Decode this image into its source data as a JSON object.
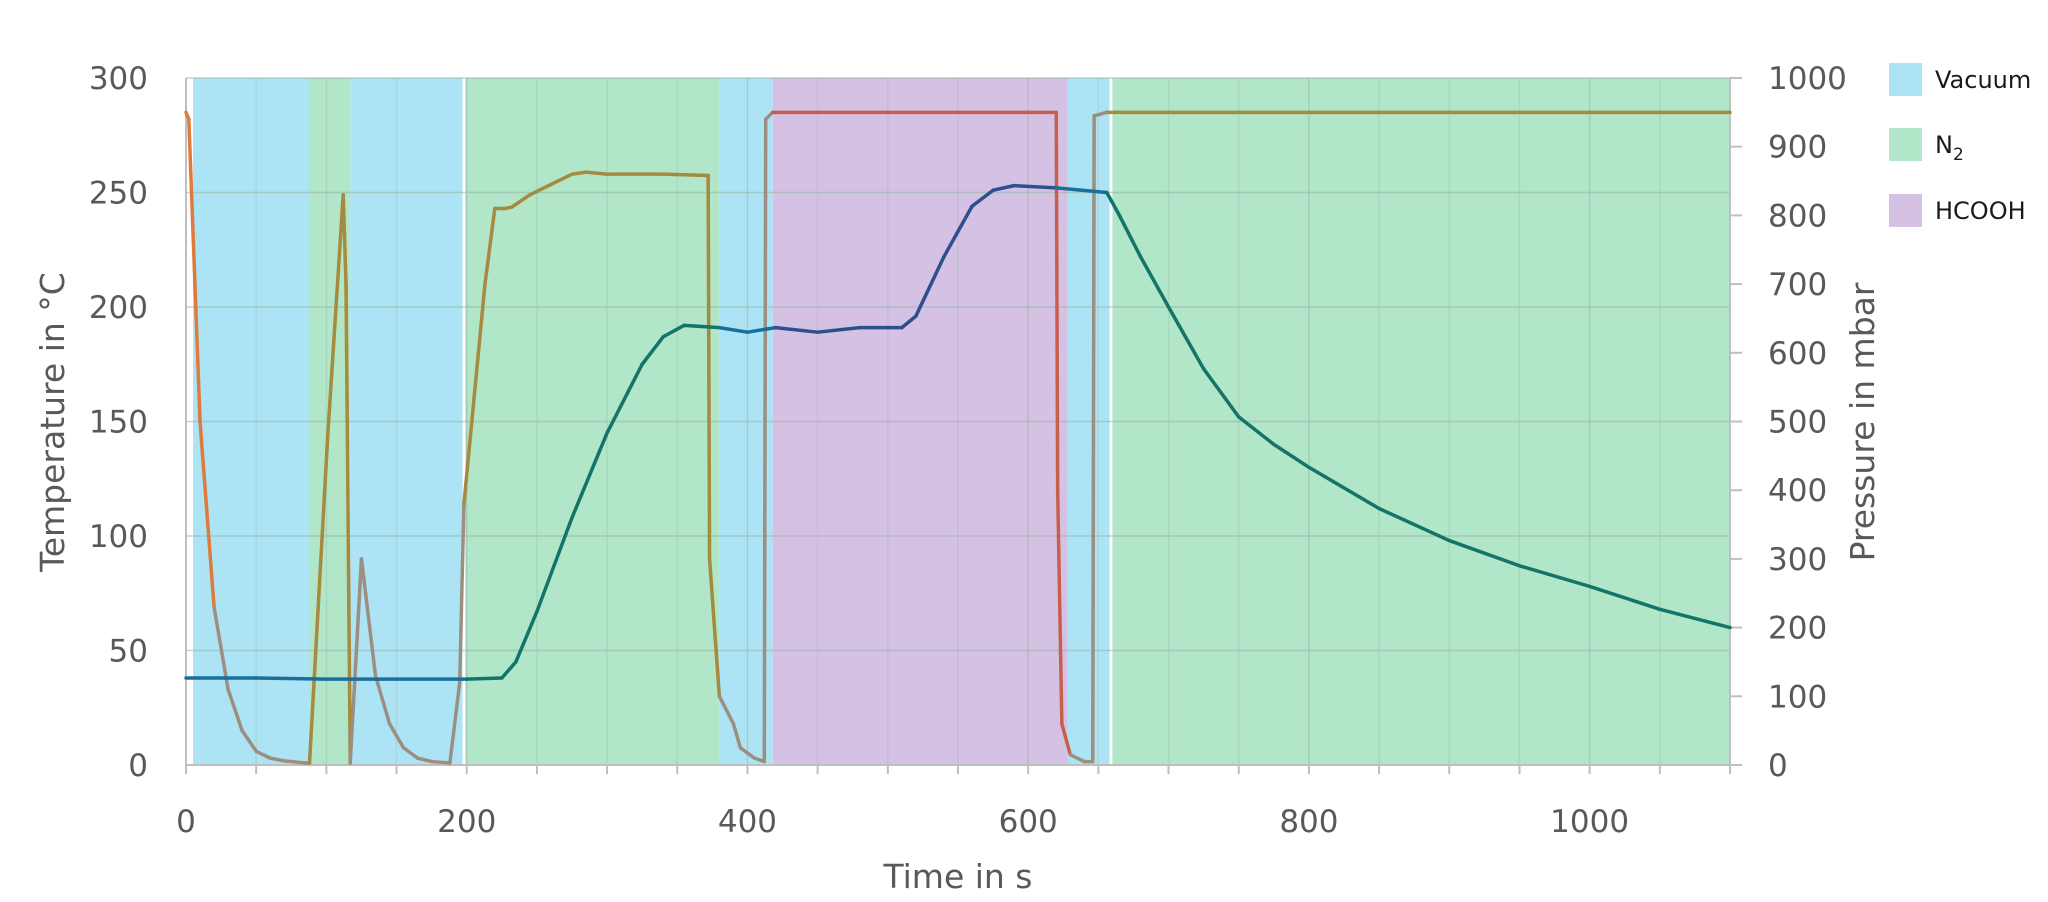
{
  "chart_data": {
    "type": "line",
    "title": "",
    "xlabel": "Time in s",
    "ylabel": "Temperature in °C",
    "y2label": "Pressure in mbar",
    "xlim": [
      0,
      1100
    ],
    "ylim": [
      0,
      300
    ],
    "y2lim": [
      0,
      1000
    ],
    "x_ticks": [
      0,
      200,
      400,
      600,
      800,
      1000
    ],
    "x_minor_step": 50,
    "y_ticks": [
      0,
      50,
      100,
      150,
      200,
      250,
      300
    ],
    "y2_ticks": [
      0,
      100,
      200,
      300,
      400,
      500,
      600,
      700,
      800,
      900,
      1000
    ],
    "grid": true,
    "legend_position": "right",
    "legend": [
      {
        "label": "Vacuum",
        "color": "#ade4f5"
      },
      {
        "label": "N2",
        "label_main": "N",
        "label_sub": "2",
        "color": "#b1e6c8"
      },
      {
        "label": "HCOOH",
        "color": "#d5c1e3"
      }
    ],
    "phases": [
      {
        "gas": "Vacuum",
        "start": 5,
        "end": 88
      },
      {
        "gas": "N2",
        "start": 88,
        "end": 117
      },
      {
        "gas": "Vacuum",
        "start": 117,
        "end": 197
      },
      {
        "gas": "N2",
        "start": 199,
        "end": 380
      },
      {
        "gas": "Vacuum",
        "start": 380,
        "end": 418
      },
      {
        "gas": "HCOOH",
        "start": 418,
        "end": 628
      },
      {
        "gas": "Vacuum",
        "start": 628,
        "end": 658
      },
      {
        "gas": "N2",
        "start": 660,
        "end": 1100
      }
    ],
    "series": [
      {
        "name": "Temperature",
        "axis": "left",
        "unit": "°C",
        "x": [
          0,
          50,
          100,
          150,
          200,
          225,
          235,
          250,
          275,
          300,
          325,
          340,
          355,
          380,
          400,
          420,
          450,
          480,
          510,
          520,
          540,
          560,
          575,
          590,
          620,
          656,
          665,
          680,
          700,
          725,
          750,
          775,
          800,
          850,
          900,
          950,
          1000,
          1050,
          1100
        ],
        "values": [
          38,
          38,
          37.5,
          37.5,
          37.5,
          38,
          45,
          67,
          108,
          145,
          175,
          187,
          192,
          191,
          189,
          191,
          189,
          191,
          191,
          196,
          222,
          244,
          251,
          253,
          252,
          250,
          240,
          222,
          200,
          173,
          152,
          140,
          130,
          112,
          98,
          87,
          78,
          68,
          60
        ]
      },
      {
        "name": "Pressure",
        "axis": "right",
        "unit": "mbar",
        "x": [
          0,
          2,
          10,
          20,
          30,
          40,
          50,
          60,
          70,
          85,
          88,
          101,
          112,
          114,
          117,
          125,
          135,
          145,
          155,
          165,
          175,
          188,
          195,
          198,
          213,
          220,
          227,
          232,
          245,
          260,
          275,
          285,
          300,
          340,
          372,
          373,
          380,
          390,
          395,
          405,
          412,
          413,
          418,
          500,
          620,
          621,
          624,
          630,
          640,
          646,
          647,
          656,
          700,
          800,
          900,
          1000,
          1100
        ],
        "values": [
          950,
          940,
          500,
          230,
          110,
          50,
          20,
          10,
          6,
          3,
          3,
          480,
          830,
          700,
          3,
          300,
          130,
          60,
          25,
          10,
          5,
          3,
          120,
          380,
          700,
          810,
          810,
          812,
          830,
          845,
          860,
          863,
          860,
          860,
          858,
          300,
          100,
          60,
          25,
          10,
          5,
          940,
          950,
          950,
          950,
          400,
          60,
          15,
          5,
          5,
          945,
          950,
          950,
          950,
          950,
          950,
          950
        ]
      }
    ]
  },
  "axes": {
    "x_title": "Time in s",
    "y_title": "Temperature in °C",
    "y2_title": "Pressure in mbar"
  },
  "legend": {
    "vacuum": "Vacuum",
    "n2_main": "N",
    "n2_sub": "2",
    "hcooh": "HCOOH"
  },
  "colors": {
    "vacuum": "#ade4f5",
    "n2": "#b1e6c8",
    "hcooh": "#d5c1e3",
    "temp_vacuum": "#1a6f9a",
    "temp_n2": "#137567",
    "temp_hcooh": "#2e4f8e",
    "pressure_vacuum": "#9c8f82",
    "pressure_vacuum_start": "#de7a3c",
    "pressure_n2": "#a58a3f",
    "pressure_hcooh": "#c85f4e",
    "grid": "#9ab7aa",
    "axis": "#bfbfbf"
  }
}
